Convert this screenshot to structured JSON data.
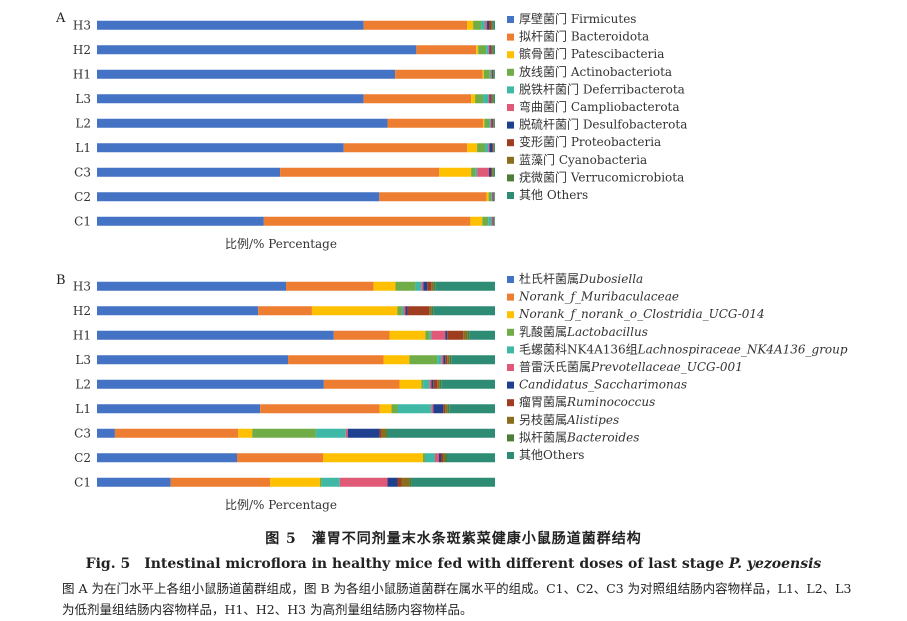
{
  "chart_data": [
    {
      "type": "bar",
      "orientation": "horizontal",
      "stacked": true,
      "panel": "A",
      "xlabel": "比例/% Percentage",
      "xlim": [
        0,
        100
      ],
      "categories": [
        "H3",
        "H2",
        "H1",
        "L3",
        "L2",
        "L1",
        "C3",
        "C2",
        "C1"
      ],
      "legend_position": "right",
      "series": [
        {
          "name": "厚壁菌门 Firmicutes",
          "color": "#4472c4",
          "values": [
            67,
            80,
            75,
            67,
            73,
            62,
            46,
            71,
            42
          ]
        },
        {
          "name": "拟杆菌门 Bacteroidota",
          "color": "#ed7d31",
          "values": [
            26,
            15,
            22,
            27,
            24,
            31,
            40,
            27,
            52
          ]
        },
        {
          "name": "髌骨菌门 Patescibacteria",
          "color": "#ffc000",
          "values": [
            1.5,
            0.5,
            0.3,
            1,
            0.3,
            2.5,
            8,
            0.5,
            3
          ]
        },
        {
          "name": "放线菌门 Actinobacteriota",
          "color": "#70ad47",
          "values": [
            2,
            2,
            1.5,
            2,
            1.2,
            2,
            1,
            0.6,
            1.5
          ]
        },
        {
          "name": "脱铁杆菌门 Deferribacterota",
          "color": "#3fb8a6",
          "values": [
            1,
            0.5,
            0.3,
            1.3,
            0.3,
            0.8,
            0.5,
            0.2,
            0.8
          ]
        },
        {
          "name": "弯曲菌门 Campliobacterota",
          "color": "#e05a78",
          "values": [
            0.5,
            0.3,
            0.2,
            0.3,
            0.3,
            0.3,
            3,
            0.2,
            0.3
          ]
        },
        {
          "name": "脱硫杆菌门 Desulfobacterota",
          "color": "#1f3f8f",
          "values": [
            0.5,
            0.3,
            0.2,
            0.3,
            0.3,
            0.8,
            0.5,
            0.2,
            0.2
          ]
        },
        {
          "name": "变形菌门 Proteobacteria",
          "color": "#9e3d20",
          "values": [
            0.5,
            0.3,
            0.1,
            0.3,
            0.2,
            0.2,
            0.3,
            0.1,
            0.1
          ]
        },
        {
          "name": "蓝藻门 Cyanobacteria",
          "color": "#8a6d1e",
          "values": [
            0.3,
            0.2,
            0.1,
            0.2,
            0.1,
            0.1,
            0.2,
            0.1,
            0.1
          ]
        },
        {
          "name": "疣微菌门 Verrucomicrobiota",
          "color": "#4e7d35",
          "values": [
            0.3,
            0.3,
            0.2,
            0.3,
            0.2,
            0.2,
            0.2,
            0.1,
            0.1
          ]
        },
        {
          "name": "其他 Others",
          "color": "#2e8b74",
          "values": [
            0.4,
            0.3,
            0.2,
            0.3,
            0.1,
            0.1,
            0.3,
            0.1,
            0.1
          ]
        }
      ]
    },
    {
      "type": "bar",
      "orientation": "horizontal",
      "stacked": true,
      "panel": "B",
      "xlabel": "比例/% Percentage",
      "xlim": [
        0,
        100
      ],
      "categories": [
        "H3",
        "H2",
        "H1",
        "L3",
        "L2",
        "L1",
        "C3",
        "C2",
        "C1"
      ],
      "legend_position": "right",
      "series": [
        {
          "name": "杜氏杆菌属",
          "name_italic": "Dubosiella",
          "color": "#4472c4",
          "values": [
            47.5,
            40.5,
            59.5,
            48,
            57,
            41,
            4.5,
            35,
            18.5
          ]
        },
        {
          "name": "",
          "name_italic": "Norank_f_Muribaculaceae",
          "color": "#ed7d31",
          "values": [
            22,
            13.5,
            14,
            24,
            19,
            30,
            31,
            21.5,
            25
          ]
        },
        {
          "name": "",
          "name_italic": "Norank_f_norank_o_Clostridia_UCG-014",
          "color": "#ffc000",
          "values": [
            5.5,
            21.5,
            9,
            6.5,
            5.5,
            3,
            3.5,
            25,
            12.5
          ]
        },
        {
          "name": "乳酸菌属",
          "name_italic": "Lactobacillus",
          "color": "#70ad47",
          "values": [
            5,
            1,
            1,
            7,
            0.5,
            1.5,
            16,
            0.5,
            0.5
          ]
        },
        {
          "name": "毛螺菌科NK4A136组",
          "name_italic": "Lachnospiraceae_NK4A136_group",
          "color": "#3fb8a6",
          "values": [
            1.5,
            0.5,
            0.5,
            1,
            1.5,
            8.5,
            7.5,
            2.5,
            4.5
          ]
        },
        {
          "name": "普雷沃氏菌属",
          "name_italic": "Prevotellaceae_UCG-001",
          "color": "#e05a78",
          "values": [
            0.5,
            0.5,
            3.5,
            0.5,
            0.5,
            0.5,
            0.5,
            1,
            12
          ]
        },
        {
          "name": "",
          "name_italic": "Candidatus_Saccharimonas",
          "color": "#1f3f8f",
          "values": [
            1,
            0.5,
            0.5,
            0.5,
            0.5,
            2.5,
            8,
            0.5,
            2.5
          ]
        },
        {
          "name": "瘤胃菌属",
          "name_italic": "Ruminococcus",
          "color": "#9e3d20",
          "values": [
            1,
            5.5,
            4,
            0.5,
            1,
            0.5,
            0.5,
            0.5,
            1
          ]
        },
        {
          "name": "另枝菌属",
          "name_italic": "Alistipes",
          "color": "#8a6d1e",
          "values": [
            0.5,
            0.5,
            1,
            0.5,
            0.5,
            0.5,
            1,
            0.5,
            2
          ]
        },
        {
          "name": "拟杆菌属",
          "name_italic": "Bacteroides",
          "color": "#4e7d35",
          "values": [
            0.5,
            0.5,
            0.5,
            0.5,
            0.5,
            0.5,
            0.5,
            0.5,
            0.5
          ]
        },
        {
          "name": "其他Others",
          "name_italic": "",
          "color": "#2e8b74",
          "values": [
            15,
            15.5,
            6.5,
            11,
            13.5,
            11.5,
            27,
            12,
            21
          ]
        }
      ]
    }
  ],
  "caption": {
    "zh": "图 5　灌胃不同剂量末水条斑紫菜健康小鼠肠道菌群结构",
    "en_prefix": "Fig. 5　Intestinal microflora in healthy mice fed with different doses of last stage ",
    "en_species": "P. yezoensis",
    "note": "图 A 为在门水平上各组小鼠肠道菌群组成，图 B 为各组小鼠肠道菌群在属水平的组成。C1、C2、C3 为对照组结肠内容物样品，L1、L2、L3 为低剂量组结肠内容物样品，H1、H2、H3 为高剂量组结肠内容物样品。"
  }
}
